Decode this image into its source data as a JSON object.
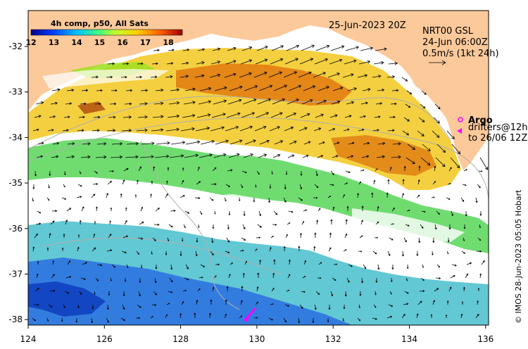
{
  "map": {
    "date_label": "25-Jun-2023 20Z",
    "colorbar": {
      "title": "4h comp, p50, All Sats",
      "ticks": [
        "12",
        "13",
        "14",
        "15",
        "16",
        "17",
        "18"
      ]
    },
    "model": {
      "name": "NRT00 GSL",
      "time": "24-Jun 06:00Z",
      "scale_label": "0.5m/s (1kt 24h)"
    },
    "legend": {
      "argo_label": "Argo",
      "drifters_line1": "drifters@12h",
      "drifters_line2": "to 26/06 12Z"
    },
    "credit": "© IMOS 28-Jun-2023 05:05 Hobart",
    "x_ticks": [
      "124",
      "126",
      "128",
      "130",
      "132",
      "134",
      "136"
    ],
    "y_ticks": [
      "-32",
      "-33",
      "-34",
      "-35",
      "-36",
      "-37",
      "-38"
    ],
    "colors": {
      "land": "#fcc99a",
      "cold": "#2c6fe0",
      "warm": "#e07a10",
      "argo": "#ff00ff"
    }
  }
}
